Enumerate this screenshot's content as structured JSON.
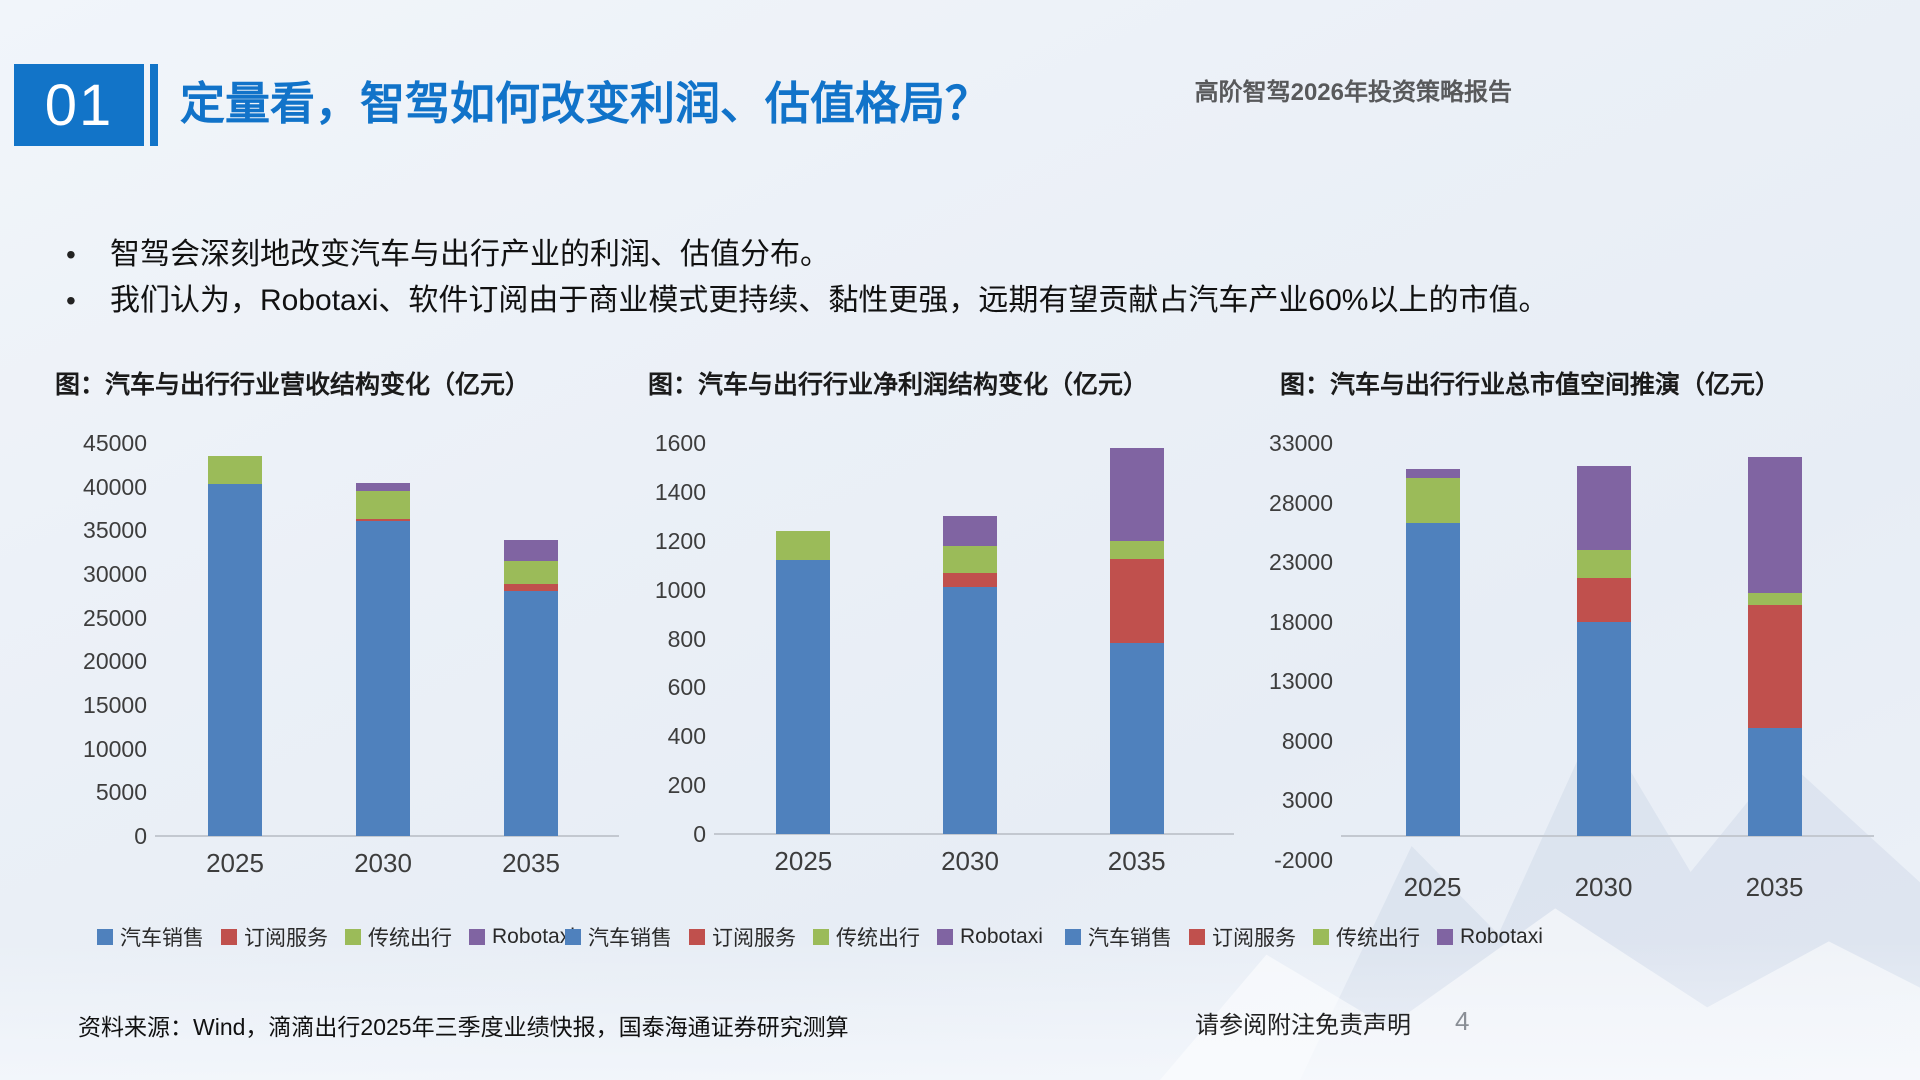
{
  "slide": {
    "section_number": "01",
    "title": "定量看，智驾如何改变利润、估值格局？",
    "report_label": "高阶智驾2026年投资策略报告",
    "accent_color": "#1274C8",
    "bullets": [
      "智驾会深刻地改变汽车与出行产业的利润、估值分布。",
      "我们认为，Robotaxi、软件订阅由于商业模式更持续、黏性更强，远期有望贡献占汽车产业60%以上的市值。"
    ],
    "footer": {
      "source": "资料来源：Wind，滴滴出行2025年三季度业绩快报，国泰海通证券研究测算",
      "disclaimer": "请参阅附注免责声明",
      "page_number": "4"
    }
  },
  "chart_data": [
    {
      "type": "bar",
      "stacked": true,
      "title": "图：汽车与出行行业营收结构变化（亿元）",
      "categories": [
        "2025",
        "2030",
        "2035"
      ],
      "series": [
        {
          "name": "汽车销售",
          "key": "car-sales",
          "color": "#4F81BD",
          "values": [
            40300,
            36100,
            28000
          ]
        },
        {
          "name": "订阅服务",
          "key": "subscription-services",
          "color": "#C0504D",
          "values": [
            0,
            200,
            800
          ]
        },
        {
          "name": "传统出行",
          "key": "traditional-mobility",
          "color": "#9BBB59",
          "values": [
            3200,
            3200,
            2700
          ]
        },
        {
          "name": "Robotaxi",
          "key": "robotaxi",
          "color": "#8064A2",
          "values": [
            0,
            900,
            2400
          ]
        }
      ],
      "ylim": [
        0,
        45000
      ],
      "yticks": [
        0,
        5000,
        10000,
        15000,
        20000,
        25000,
        30000,
        35000,
        40000,
        45000
      ],
      "grid": false,
      "legend_position": "bottom"
    },
    {
      "type": "bar",
      "stacked": true,
      "title": "图：汽车与出行行业净利润结构变化（亿元）",
      "categories": [
        "2025",
        "2030",
        "2035"
      ],
      "series": [
        {
          "name": "汽车销售",
          "key": "car-sales",
          "color": "#4F81BD",
          "values": [
            1120,
            1010,
            780
          ]
        },
        {
          "name": "订阅服务",
          "key": "subscription-services",
          "color": "#C0504D",
          "values": [
            0,
            60,
            345
          ]
        },
        {
          "name": "传统出行",
          "key": "traditional-mobility",
          "color": "#9BBB59",
          "values": [
            120,
            110,
            75
          ]
        },
        {
          "name": "Robotaxi",
          "key": "robotaxi",
          "color": "#8064A2",
          "values": [
            0,
            120,
            380
          ]
        }
      ],
      "ylim": [
        0,
        1600
      ],
      "yticks": [
        0,
        200,
        400,
        600,
        800,
        1000,
        1200,
        1400,
        1600
      ],
      "grid": false,
      "legend_position": "bottom"
    },
    {
      "type": "bar",
      "stacked": true,
      "title": "图：汽车与出行行业总市值空间推演（亿元）",
      "categories": [
        "2025",
        "2030",
        "2035"
      ],
      "series": [
        {
          "name": "汽车销售",
          "key": "car-sales",
          "color": "#4F81BD",
          "values": [
            26300,
            18000,
            9100
          ]
        },
        {
          "name": "订阅服务",
          "key": "subscription-services",
          "color": "#C0504D",
          "values": [
            0,
            3700,
            10300
          ]
        },
        {
          "name": "传统出行",
          "key": "traditional-mobility",
          "color": "#9BBB59",
          "values": [
            3800,
            2300,
            1000
          ]
        },
        {
          "name": "Robotaxi",
          "key": "robotaxi",
          "color": "#8064A2",
          "values": [
            700,
            7100,
            11400
          ]
        }
      ],
      "ylim": [
        -2000,
        33000
      ],
      "yticks": [
        -2000,
        3000,
        8000,
        13000,
        18000,
        23000,
        28000,
        33000
      ],
      "grid": false,
      "legend_position": "bottom"
    }
  ]
}
